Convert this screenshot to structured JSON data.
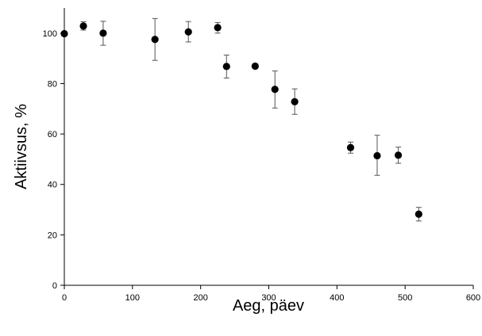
{
  "chart_data": {
    "type": "scatter",
    "title": "",
    "xlabel": "Aeg, päev",
    "ylabel": "Aktiivsus, %",
    "xlim": [
      0,
      600
    ],
    "ylim": [
      0,
      110
    ],
    "xticks": [
      0,
      100,
      200,
      300,
      400,
      500,
      600
    ],
    "yticks": [
      0,
      20,
      40,
      60,
      80,
      100
    ],
    "grid": false,
    "legend": "none",
    "marker_color": "#000000",
    "series": [
      {
        "points": [
          {
            "x": 0,
            "y": 99.8,
            "err_low": 99.8,
            "err_high": 99.8
          },
          {
            "x": 28,
            "y": 102.8,
            "err_low": 101.2,
            "err_high": 104.5
          },
          {
            "x": 57,
            "y": 100.0,
            "err_low": 95.2,
            "err_high": 104.7
          },
          {
            "x": 133,
            "y": 97.5,
            "err_low": 89.2,
            "err_high": 105.8
          },
          {
            "x": 182,
            "y": 100.5,
            "err_low": 96.5,
            "err_high": 104.6
          },
          {
            "x": 225,
            "y": 102.2,
            "err_low": 100.0,
            "err_high": 104.2
          },
          {
            "x": 238,
            "y": 86.8,
            "err_low": 82.2,
            "err_high": 91.3
          },
          {
            "x": 280,
            "y": 86.9,
            "err_low": 86.1,
            "err_high": 87.8
          },
          {
            "x": 309,
            "y": 77.7,
            "err_low": 70.3,
            "err_high": 85.0
          },
          {
            "x": 338,
            "y": 72.8,
            "err_low": 67.8,
            "err_high": 77.9
          },
          {
            "x": 420,
            "y": 54.6,
            "err_low": 52.4,
            "err_high": 56.8
          },
          {
            "x": 459,
            "y": 51.4,
            "err_low": 43.6,
            "err_high": 59.5
          },
          {
            "x": 490,
            "y": 51.6,
            "err_low": 48.4,
            "err_high": 54.8
          },
          {
            "x": 520,
            "y": 28.2,
            "err_low": 25.5,
            "err_high": 30.9
          }
        ]
      }
    ]
  }
}
